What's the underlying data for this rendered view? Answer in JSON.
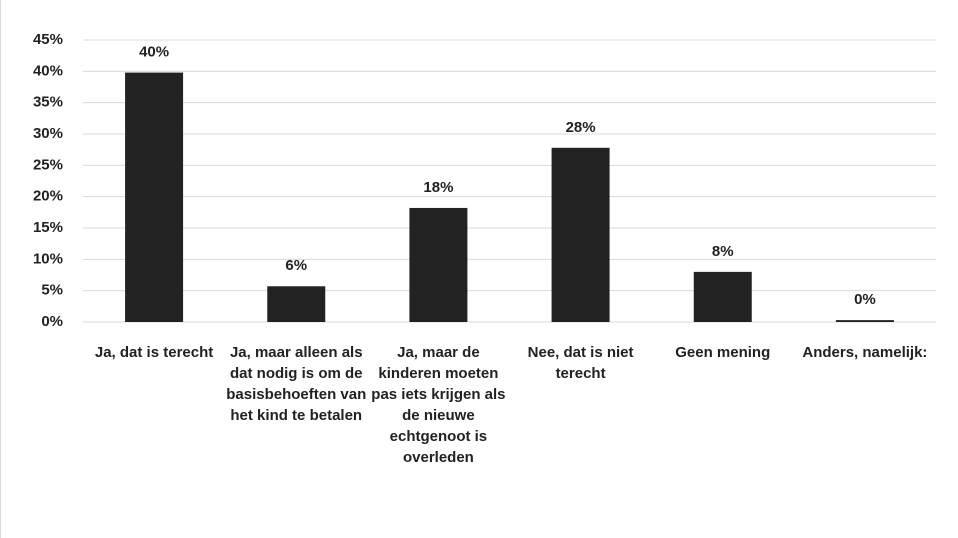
{
  "chart_data": {
    "type": "bar",
    "categories": [
      "Ja, dat is terecht",
      "Ja, maar alleen als dat nodig is om de basisbehoeften van het kind te betalen",
      "Ja, maar de kinderen moeten pas iets krijgen als de nieuwe echtgenoot is overleden",
      "Nee, dat is niet terecht",
      "Geen mening",
      "Anders, namelijk:"
    ],
    "values": [
      39.8,
      5.7,
      18.2,
      27.8,
      8.0,
      0.3
    ],
    "value_labels": [
      "40%",
      "6%",
      "18%",
      "28%",
      "8%",
      "0%"
    ],
    "color": "#222222",
    "ylim": [
      0,
      45
    ],
    "yticks": [
      {
        "value": 0,
        "label": "0%"
      },
      {
        "value": 5,
        "label": "5%"
      },
      {
        "value": 10,
        "label": "10%"
      },
      {
        "value": 15,
        "label": "15%"
      },
      {
        "value": 20,
        "label": "20%"
      },
      {
        "value": 25,
        "label": "25%"
      },
      {
        "value": 30,
        "label": "30%"
      },
      {
        "value": 35,
        "label": "35%"
      },
      {
        "value": 40,
        "label": "40%"
      },
      {
        "value": 45,
        "label": "45%"
      }
    ],
    "grid": true
  }
}
